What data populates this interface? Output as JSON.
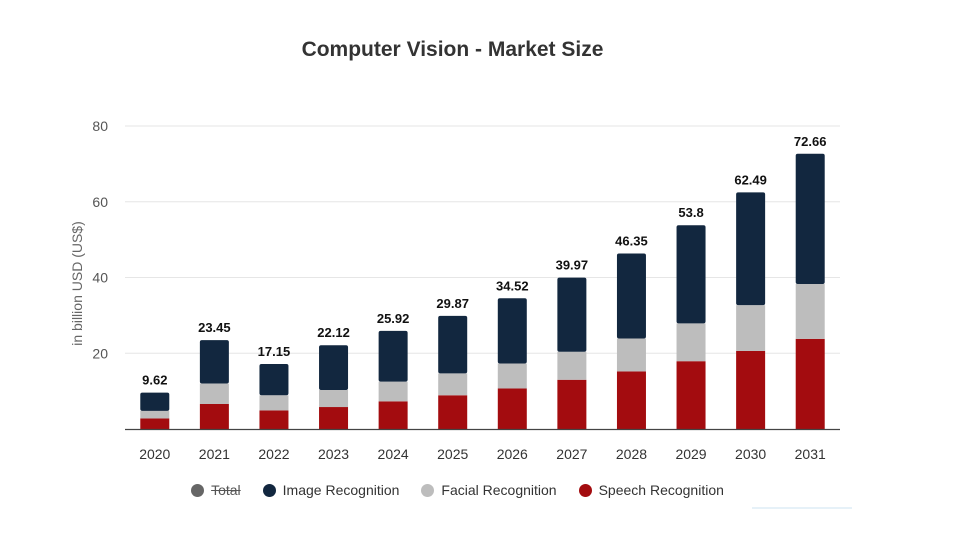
{
  "chart_data": {
    "type": "bar",
    "stacked": true,
    "title": "Computer Vision - Market Size",
    "xlabel": "",
    "ylabel": "in billion USD (US$)",
    "ylim": [
      0,
      80
    ],
    "yticks": [
      "20",
      "40",
      "60",
      "80"
    ],
    "categories": [
      "2020",
      "2021",
      "2022",
      "2023",
      "2024",
      "2025",
      "2026",
      "2027",
      "2028",
      "2029",
      "2030",
      "2031"
    ],
    "totals": [
      "9.62",
      "23.45",
      "17.15",
      "22.12",
      "25.92",
      "29.87",
      "34.52",
      "39.97",
      "46.35",
      "53.8",
      "62.49",
      "72.66"
    ],
    "series": [
      {
        "name": "Speech Recognition",
        "color": "#a30c0f",
        "values": [
          2.8,
          6.6,
          4.9,
          5.8,
          7.3,
          8.9,
          10.7,
          13.0,
          15.2,
          17.9,
          20.6,
          23.8
        ]
      },
      {
        "name": "Facial Recognition",
        "color": "#bdbdbd",
        "values": [
          2.0,
          5.4,
          4.0,
          4.5,
          5.2,
          5.8,
          6.6,
          7.4,
          8.7,
          10.0,
          12.1,
          14.5
        ]
      },
      {
        "name": "Image Recognition",
        "color": "#12273f",
        "values": [
          4.82,
          11.45,
          8.25,
          11.82,
          13.42,
          15.17,
          17.22,
          19.57,
          22.45,
          25.9,
          29.79,
          34.36
        ]
      }
    ],
    "legend": [
      {
        "name": "Total",
        "color": "#666666",
        "hidden": true
      },
      {
        "name": "Image Recognition",
        "color": "#12273f",
        "hidden": false
      },
      {
        "name": "Facial Recognition",
        "color": "#bdbdbd",
        "hidden": false
      },
      {
        "name": "Speech Recognition",
        "color": "#a30c0f",
        "hidden": false
      }
    ],
    "grid": true,
    "legend_position": "bottom"
  }
}
